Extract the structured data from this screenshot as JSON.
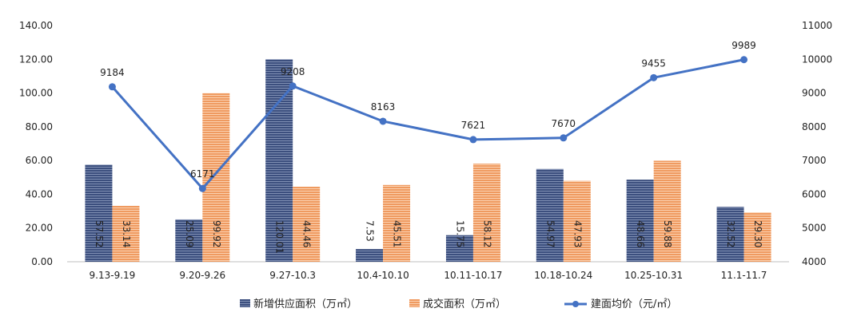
{
  "chart_data": {
    "type": "bar",
    "categories": [
      "9.13-9.19",
      "9.20-9.26",
      "9.27-10.3",
      "10.4-10.10",
      "10.11-10.17",
      "10.18-10.24",
      "10.25-10.31",
      "11.1-11.7"
    ],
    "series": [
      {
        "name": "新增供应面积（万㎡）",
        "type": "bar",
        "axis": "left",
        "color": "#3c4f7e",
        "values": [
          57.52,
          25.09,
          120.01,
          7.53,
          15.75,
          54.97,
          48.66,
          32.52
        ],
        "labels": [
          "57.52",
          "25.09",
          "120.01",
          "7.53",
          "15.75",
          "54.97",
          "48.66",
          "32.52"
        ]
      },
      {
        "name": "成交面积（万㎡）",
        "type": "bar",
        "axis": "left",
        "color": "#f0a06a",
        "values": [
          33.14,
          99.92,
          44.46,
          45.51,
          58.12,
          47.93,
          59.88,
          29.3
        ],
        "labels": [
          "33.14",
          "99.92",
          "44.46",
          "45.51",
          "58.12",
          "47.93",
          "59.88",
          "29.30"
        ]
      },
      {
        "name": "建面均价（元/㎡）",
        "type": "line",
        "axis": "right",
        "color": "#4472c4",
        "values": [
          9184,
          6171,
          9208,
          8163,
          7621,
          7670,
          9455,
          9989
        ],
        "labels": [
          "9184",
          "6171",
          "9208",
          "8163",
          "7621",
          "7670",
          "9455",
          "9989"
        ]
      }
    ],
    "y_left": {
      "ylim": [
        0,
        140
      ],
      "ticks": [
        "0.00",
        "20.00",
        "40.00",
        "60.00",
        "80.00",
        "100.00",
        "120.00",
        "140.00"
      ]
    },
    "y_right": {
      "ylim": [
        4000,
        11000
      ],
      "ticks": [
        "4000",
        "5000",
        "6000",
        "7000",
        "8000",
        "9000",
        "10000",
        "11000"
      ]
    },
    "grid": false,
    "legend": "bottom"
  }
}
